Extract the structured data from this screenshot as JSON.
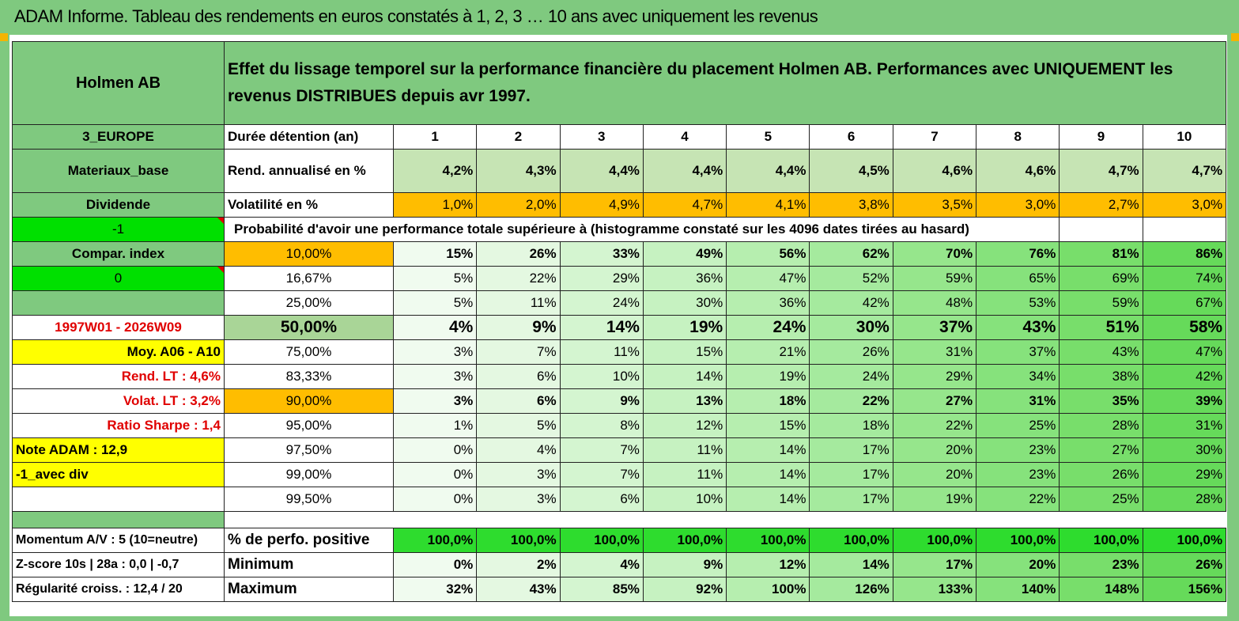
{
  "title": "ADAM Informe. Tableau des rendements en euros constatés à 1, 2, 3 … 10 ans avec uniquement les revenus",
  "header": {
    "company": "Holmen AB",
    "description": "Effet du lissage temporel sur la performance financière du placement Holmen AB. Performances avec UNIQUEMENT les revenus DISTRIBUES depuis avr 1997."
  },
  "left": {
    "region": "3_EUROPE",
    "sector": "Materiaux_base",
    "type": "Dividende",
    "flag1": "-1",
    "compar": "Compar. index",
    "flag2": "0",
    "period": "1997W01 - 2026W09",
    "moy": "Moy. A06 - A10",
    "rend_lt": "Rend. LT :   4,6%",
    "volat_lt": "Volat. LT :   3,2%",
    "sharpe": "Ratio Sharpe :    1,4",
    "note": "Note ADAM : 12,9",
    "avec_div": "-1_avec div",
    "momentum": "Momentum A/V : 5 (10=neutre)",
    "zscore": "Z-score 10s | 28a : 0,0 | -0,7",
    "regularite": "Régularité croiss. : 12,4 / 20"
  },
  "labels": {
    "duree": "Durée détention (an)",
    "rend": "Rend. annualisé en %",
    "vol": "Volatilité en %",
    "proba": "Probabilité d'avoir une performance totale supérieure à (histogramme constaté sur les 4096 dates tirées au hasard)",
    "pos": "% de perfo. positive",
    "min": "Minimum",
    "max": "Maximum"
  },
  "years": [
    "1",
    "2",
    "3",
    "4",
    "5",
    "6",
    "7",
    "8",
    "9",
    "10"
  ],
  "rend": [
    "4,2%",
    "4,3%",
    "4,4%",
    "4,4%",
    "4,4%",
    "4,5%",
    "4,6%",
    "4,6%",
    "4,7%",
    "4,7%"
  ],
  "vol": [
    "1,0%",
    "2,0%",
    "4,9%",
    "4,7%",
    "4,1%",
    "3,8%",
    "3,5%",
    "3,0%",
    "2,7%",
    "3,0%"
  ],
  "prob_rows": [
    {
      "threshold": "10,00%",
      "values": [
        "15%",
        "26%",
        "33%",
        "49%",
        "56%",
        "62%",
        "70%",
        "76%",
        "81%",
        "86%"
      ]
    },
    {
      "threshold": "16,67%",
      "values": [
        "5%",
        "22%",
        "29%",
        "36%",
        "47%",
        "52%",
        "59%",
        "65%",
        "69%",
        "74%"
      ]
    },
    {
      "threshold": "25,00%",
      "values": [
        "5%",
        "11%",
        "24%",
        "30%",
        "36%",
        "42%",
        "48%",
        "53%",
        "59%",
        "67%"
      ]
    },
    {
      "threshold": "50,00%",
      "values": [
        "4%",
        "9%",
        "14%",
        "19%",
        "24%",
        "30%",
        "37%",
        "43%",
        "51%",
        "58%"
      ]
    },
    {
      "threshold": "75,00%",
      "values": [
        "3%",
        "7%",
        "11%",
        "15%",
        "21%",
        "26%",
        "31%",
        "37%",
        "43%",
        "47%"
      ]
    },
    {
      "threshold": "83,33%",
      "values": [
        "3%",
        "6%",
        "10%",
        "14%",
        "19%",
        "24%",
        "29%",
        "34%",
        "38%",
        "42%"
      ]
    },
    {
      "threshold": "90,00%",
      "values": [
        "3%",
        "6%",
        "9%",
        "13%",
        "18%",
        "22%",
        "27%",
        "31%",
        "35%",
        "39%"
      ]
    },
    {
      "threshold": "95,00%",
      "values": [
        "1%",
        "5%",
        "8%",
        "12%",
        "15%",
        "18%",
        "22%",
        "25%",
        "28%",
        "31%"
      ]
    },
    {
      "threshold": "97,50%",
      "values": [
        "0%",
        "4%",
        "7%",
        "11%",
        "14%",
        "17%",
        "20%",
        "23%",
        "27%",
        "30%"
      ]
    },
    {
      "threshold": "99,00%",
      "values": [
        "0%",
        "3%",
        "7%",
        "11%",
        "14%",
        "17%",
        "20%",
        "23%",
        "26%",
        "29%"
      ]
    },
    {
      "threshold": "99,50%",
      "values": [
        "0%",
        "3%",
        "6%",
        "10%",
        "14%",
        "17%",
        "19%",
        "22%",
        "25%",
        "28%"
      ]
    }
  ],
  "pos": [
    "100,0%",
    "100,0%",
    "100,0%",
    "100,0%",
    "100,0%",
    "100,0%",
    "100,0%",
    "100,0%",
    "100,0%",
    "100,0%"
  ],
  "min": [
    "0%",
    "2%",
    "4%",
    "9%",
    "12%",
    "14%",
    "17%",
    "20%",
    "23%",
    "26%"
  ],
  "max": [
    "32%",
    "43%",
    "85%",
    "92%",
    "100%",
    "126%",
    "133%",
    "140%",
    "148%",
    "156%"
  ],
  "colors": {
    "header_green": "#7fc97f",
    "orange": "#ffbd00",
    "bright_green": "#00e000",
    "yellow": "#ffff00",
    "red_text": "#e00000"
  }
}
